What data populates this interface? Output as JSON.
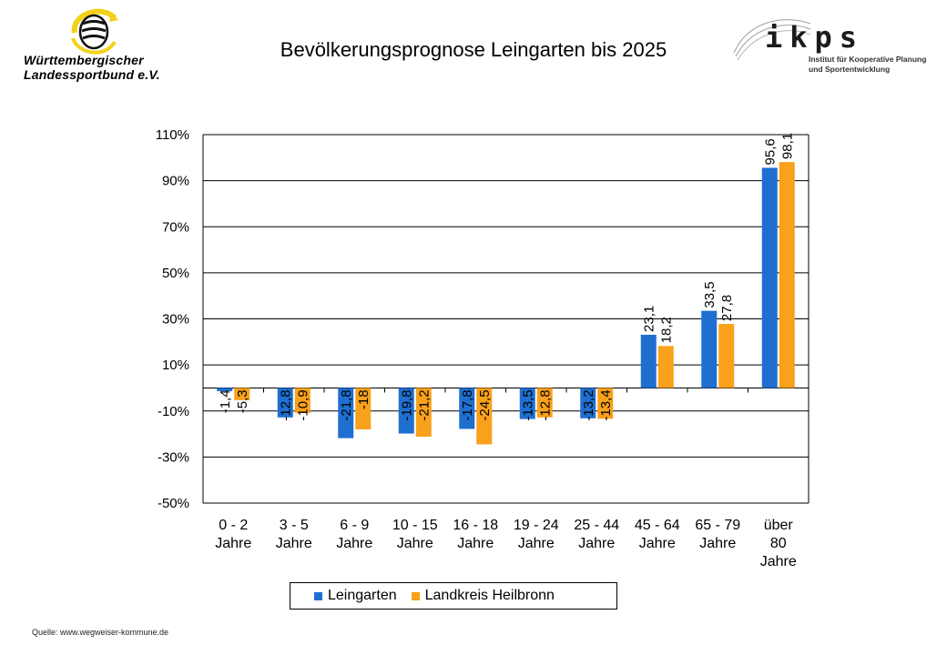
{
  "header": {
    "title": "Bevölkerungsprognose Leingarten bis 2025",
    "wlsb_logo": {
      "line1": "Württembergischer",
      "line2": "Landessportbund e.V.",
      "icon": "stag-antlers-emblem-icon",
      "accent": "#f2d21a"
    },
    "ikps_logo": {
      "word": "ikps",
      "line1": "Institut für Kooperative Planung",
      "line2": "und Sportentwicklung"
    }
  },
  "chart_data": {
    "type": "bar",
    "categories": [
      [
        "0 - 2",
        "Jahre"
      ],
      [
        "3 - 5",
        "Jahre"
      ],
      [
        "6 - 9",
        "Jahre"
      ],
      [
        "10 - 15",
        "Jahre"
      ],
      [
        "16 - 18",
        "Jahre"
      ],
      [
        "19 - 24",
        "Jahre"
      ],
      [
        "25 - 44",
        "Jahre"
      ],
      [
        "45 - 64",
        "Jahre"
      ],
      [
        "65 - 79",
        "Jahre"
      ],
      [
        "über",
        "80",
        "Jahre"
      ]
    ],
    "series": [
      {
        "name": "Leingarten",
        "color": "#1f6fd1",
        "values": [
          -1.4,
          -12.8,
          -21.8,
          -19.8,
          -17.8,
          -13.5,
          -13.2,
          23.1,
          33.5,
          95.6
        ],
        "labels": [
          "-1,4",
          "-12,8",
          "-21,8",
          "-19,8",
          "-17,8",
          "-13,5",
          "-13,2",
          "23,1",
          "33,5",
          "95,6"
        ]
      },
      {
        "name": "Landkreis Heilbronn",
        "color": "#f9a11b",
        "values": [
          -5.3,
          -10.9,
          -18,
          -21.2,
          -24.5,
          -12.8,
          -13.4,
          18.2,
          27.8,
          98.1
        ],
        "labels": [
          "-5,3",
          "-10,9",
          "-18",
          "-21,2",
          "-24,5",
          "-12,8",
          "-13,4",
          "18,2",
          "27,8",
          "98,1"
        ]
      }
    ],
    "yticks": [
      "110%",
      "90%",
      "70%",
      "50%",
      "30%",
      "10%",
      "-10%",
      "-30%",
      "-50%"
    ],
    "ytick_values": [
      110,
      90,
      70,
      50,
      30,
      10,
      -10,
      -30,
      -50
    ],
    "ylim": [
      -50,
      110
    ],
    "grid": true,
    "legend_position": "bottom",
    "xlabel": "",
    "ylabel": ""
  },
  "footer": {
    "source": "Quelle: www.wegweiser-kommune.de"
  }
}
